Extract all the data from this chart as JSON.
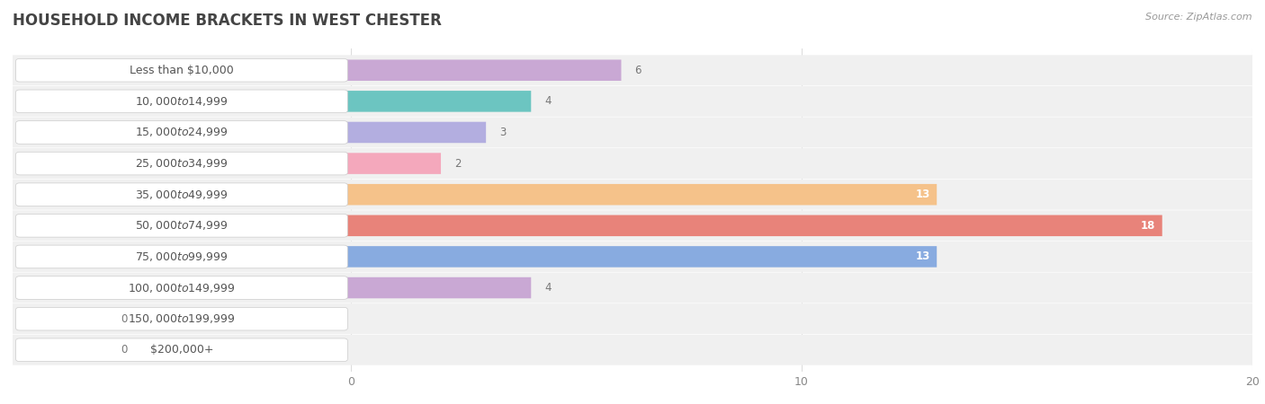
{
  "title": "HOUSEHOLD INCOME BRACKETS IN WEST CHESTER",
  "source": "Source: ZipAtlas.com",
  "categories": [
    "Less than $10,000",
    "$10,000 to $14,999",
    "$15,000 to $24,999",
    "$25,000 to $34,999",
    "$35,000 to $49,999",
    "$50,000 to $74,999",
    "$75,000 to $99,999",
    "$100,000 to $149,999",
    "$150,000 to $199,999",
    "$200,000+"
  ],
  "values": [
    6,
    4,
    3,
    2,
    13,
    18,
    13,
    4,
    0,
    0
  ],
  "bar_colors": [
    "#c9a8d4",
    "#6cc5c1",
    "#b3aee0",
    "#f4a8bc",
    "#f5c28a",
    "#e8837a",
    "#88abe0",
    "#c9a8d4",
    "#6cc5c1",
    "#b3aee0"
  ],
  "xlim_data": [
    0,
    20
  ],
  "xticks": [
    0,
    10,
    20
  ],
  "background_color": "#ffffff",
  "row_bg_color": "#f0f0f0",
  "label_pill_color": "#ffffff",
  "title_fontsize": 12,
  "label_fontsize": 9,
  "value_fontsize": 8.5,
  "bar_height": 0.68,
  "label_inside_color": "#ffffff",
  "label_outside_color": "#777777",
  "title_color": "#444444",
  "source_color": "#999999",
  "tick_color": "#aaaaaa",
  "grid_color": "#dddddd"
}
